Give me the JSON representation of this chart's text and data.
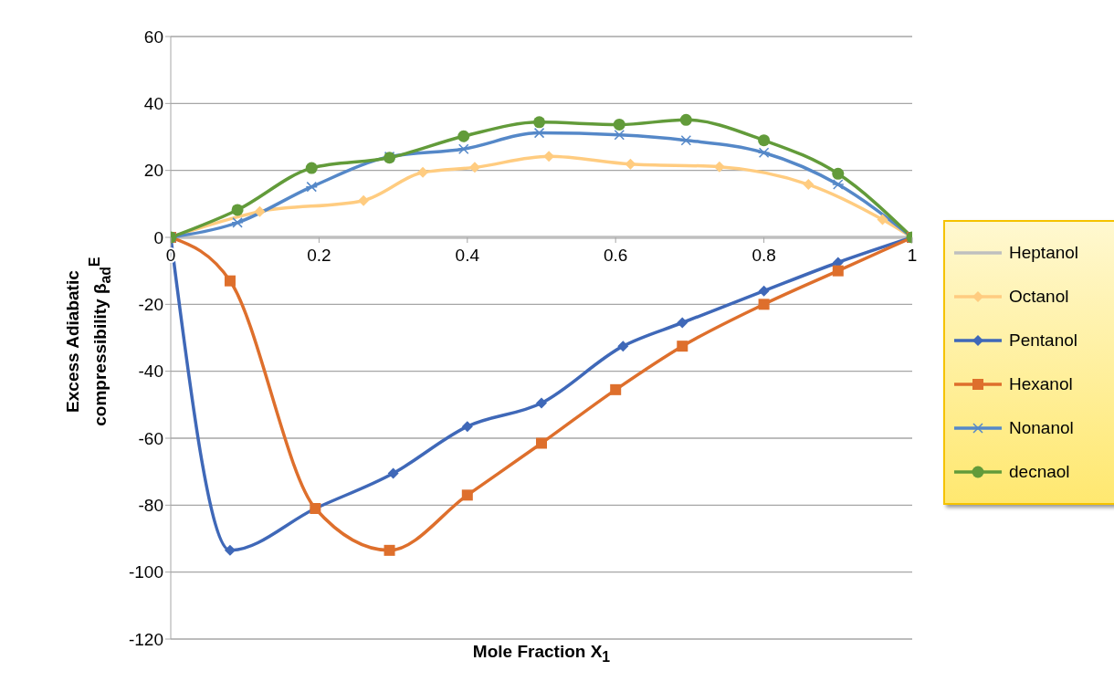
{
  "chart_data": {
    "type": "line",
    "xlabel": "Mole Fraction X$_{1}$",
    "ylabel": "Excess Adiabatic compressibility β$_{ad}$$^{E}$",
    "xlim": [
      0,
      1
    ],
    "xticks": [
      0,
      0.2,
      0.4,
      0.6,
      0.8,
      1
    ],
    "ylim": [
      -120,
      60
    ],
    "yticks": [
      -120,
      -100,
      -80,
      -60,
      -40,
      -20,
      0,
      20,
      40,
      60
    ],
    "grid": "y",
    "legend": "right",
    "series": [
      {
        "name": "Heptanol",
        "color": "#bfbfbf",
        "marker": "none",
        "x": [
          0,
          0.2,
          0.4,
          0.6,
          0.8,
          1
        ],
        "values": [
          0,
          0,
          0,
          0,
          0,
          0
        ]
      },
      {
        "name": "Octanol",
        "color": "#ffcc80",
        "marker": "diamond",
        "x": [
          0,
          0.12,
          0.26,
          0.34,
          0.41,
          0.51,
          0.62,
          0.74,
          0.86,
          0.96,
          1
        ],
        "values": [
          0,
          7.7,
          11,
          19.4,
          20.9,
          24.2,
          21.9,
          21.1,
          15.8,
          5.3,
          0
        ]
      },
      {
        "name": "Pentanol",
        "color": "#3f68b8",
        "marker": "diamond",
        "x": [
          0,
          0.08,
          0.195,
          0.3,
          0.4,
          0.5,
          0.61,
          0.69,
          0.8,
          0.9,
          1
        ],
        "values": [
          0,
          -93.5,
          -81,
          -70.5,
          -56.5,
          -49.5,
          -32.5,
          -25.5,
          -16,
          -7.5,
          0
        ]
      },
      {
        "name": "Hexanol",
        "color": "#de6f2c",
        "marker": "square",
        "x": [
          0,
          0.08,
          0.195,
          0.295,
          0.4,
          0.5,
          0.6,
          0.69,
          0.8,
          0.9,
          1
        ],
        "values": [
          0,
          -13,
          -81,
          -93.5,
          -77,
          -61.5,
          -45.5,
          -32.5,
          -20,
          -10,
          0
        ]
      },
      {
        "name": "Nonanol",
        "color": "#5588c8",
        "marker": "cross",
        "x": [
          0,
          0.09,
          0.19,
          0.295,
          0.395,
          0.497,
          0.605,
          0.695,
          0.8,
          0.9,
          1
        ],
        "values": [
          0,
          4.4,
          15.1,
          24.1,
          26.4,
          31.2,
          30.6,
          29,
          25.3,
          15.8,
          0
        ]
      },
      {
        "name": "decnaol",
        "color": "#629b3a",
        "marker": "circle",
        "x": [
          0,
          0.09,
          0.19,
          0.295,
          0.395,
          0.497,
          0.605,
          0.695,
          0.8,
          0.9,
          1
        ],
        "values": [
          0,
          8.2,
          20.7,
          23.8,
          30.2,
          34.4,
          33.7,
          35.1,
          29,
          19,
          0
        ]
      }
    ]
  }
}
